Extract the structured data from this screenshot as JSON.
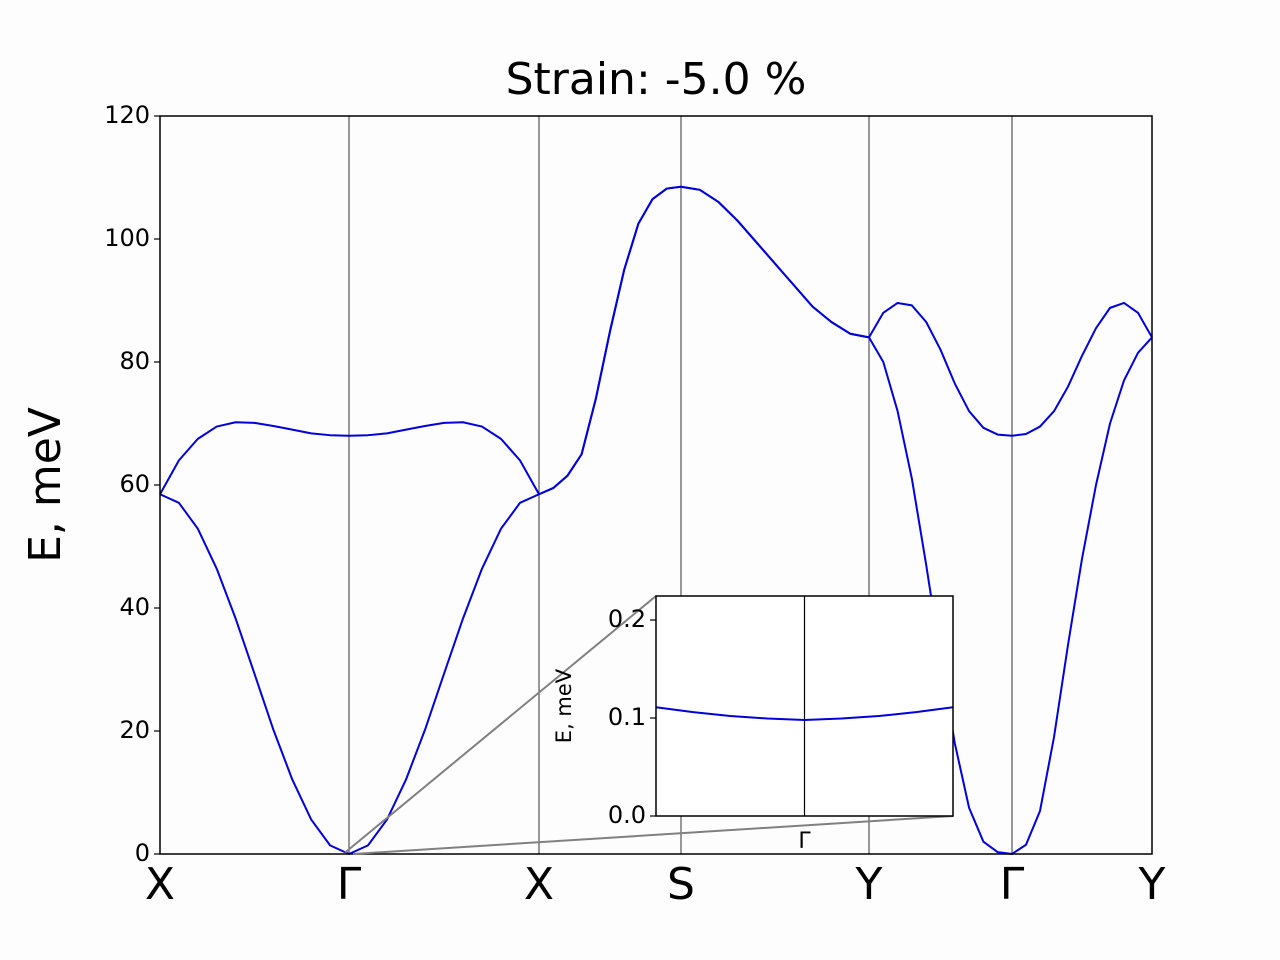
{
  "chart_data": [
    {
      "type": "line",
      "title": "Strain: -5.0 %",
      "y_label": "E, meV",
      "x": [
        0,
        0.189,
        0.378,
        0.567,
        0.756,
        0.945,
        1.134,
        1.323,
        1.512,
        1.701,
        1.89,
        2.08,
        2.27,
        2.46,
        2.65,
        2.84,
        3.03,
        3.22,
        3.41,
        3.6,
        3.79,
        3.932,
        4.074,
        4.216,
        4.358,
        4.5,
        4.642,
        4.784,
        4.926,
        5.068,
        5.21,
        5.398,
        5.586,
        5.774,
        5.962,
        6.15,
        6.338,
        6.526,
        6.714,
        6.902,
        7.09,
        7.233,
        7.376,
        7.519,
        7.662,
        7.805,
        7.948,
        8.091,
        8.234,
        8.377,
        8.52,
        8.66,
        8.8,
        8.94,
        9.08,
        9.22,
        9.36,
        9.5,
        9.64,
        9.78,
        9.92
      ],
      "series": [
        {
          "color": "#0000dd",
          "values": [
            58.5,
            57.1,
            52.9,
            46.4,
            38.3,
            29.3,
            20.2,
            12.1,
            5.6,
            1.4,
            0,
            1.4,
            5.6,
            12.1,
            20.2,
            29.3,
            38.3,
            46.4,
            52.9,
            57.1,
            58.5,
            59.5,
            61.5,
            65,
            74,
            85,
            95,
            102.5,
            106.5,
            108.2,
            108.5,
            108,
            106,
            103,
            99.5,
            96,
            92.5,
            89,
            86.5,
            84.6,
            84,
            80,
            72,
            61,
            47,
            32,
            18,
            7.5,
            2,
            0.3,
            0,
            1.5,
            7,
            19,
            34,
            48,
            60,
            70,
            77,
            81.5,
            84
          ]
        },
        {
          "color": "#0000dd",
          "values": [
            58.5,
            64,
            67.5,
            69.5,
            70.2,
            70.1,
            69.6,
            69,
            68.4,
            68.1,
            68,
            68.1,
            68.4,
            69,
            69.6,
            70.1,
            70.2,
            69.5,
            67.5,
            64,
            58.5,
            59.5,
            61.5,
            65,
            74,
            85,
            95,
            102.5,
            106.5,
            108.2,
            108.5,
            108,
            106,
            103,
            99.5,
            96,
            92.5,
            89,
            86.5,
            84.6,
            84,
            88,
            89.6,
            89.2,
            86.5,
            82,
            76.5,
            72,
            69.3,
            68.2,
            68,
            68.3,
            69.5,
            72,
            76,
            81,
            85.5,
            88.8,
            89.6,
            88,
            84
          ]
        }
      ],
      "xlim": [
        0,
        9.92
      ],
      "xticks": [
        {
          "value": 0,
          "label": "X"
        },
        {
          "value": 1.89,
          "label": "Γ"
        },
        {
          "value": 3.79,
          "label": "X"
        },
        {
          "value": 5.21,
          "label": "S"
        },
        {
          "value": 7.09,
          "label": "Y"
        },
        {
          "value": 8.52,
          "label": "Γ"
        },
        {
          "value": 9.92,
          "label": "Y"
        }
      ],
      "ylim": [
        0,
        120
      ],
      "yticks": [
        0,
        20,
        40,
        60,
        80,
        100,
        120
      ],
      "grid": true
    },
    {
      "type": "line",
      "y_label": "E, meV",
      "x": [
        1.85,
        1.86,
        1.87,
        1.88,
        1.89,
        1.9,
        1.91,
        1.92,
        1.93
      ],
      "series": [
        {
          "color": "#0000dd",
          "values": [
            0.111,
            0.106,
            0.102,
            0.0995,
            0.098,
            0.0995,
            0.102,
            0.106,
            0.111
          ]
        }
      ],
      "xlim": [
        1.85,
        1.93
      ],
      "xticks": [
        {
          "value": 1.89,
          "label": "Γ"
        }
      ],
      "ylim": [
        0,
        0.2245
      ],
      "yticks": [
        {
          "value": 0,
          "label": "0.0"
        },
        0.1,
        0.2
      ],
      "grid": true
    }
  ]
}
